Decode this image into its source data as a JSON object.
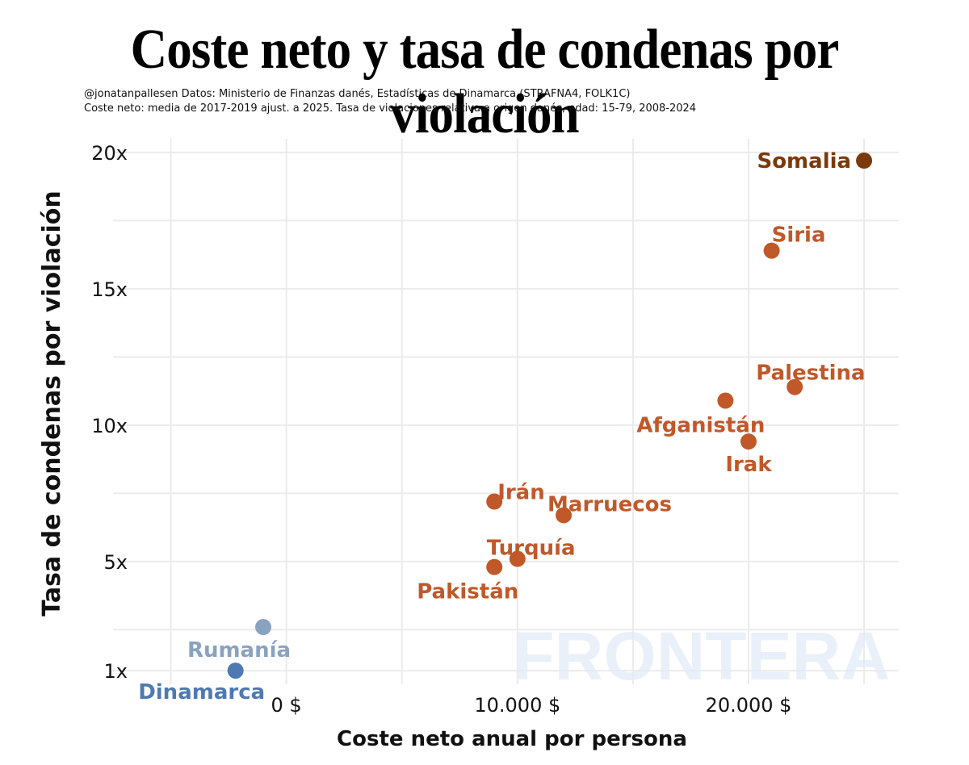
{
  "header": {
    "title": "Coste neto y tasa de condenas por violación",
    "subtitle_line1": "@jonatanpallesen  Datos: Ministerio de Finanzas danés, Estadísticas de Dinamarca (STRAFNA4, FOLK1C)",
    "subtitle_line2": "Coste neto: media de 2017-2019 ajust. a 2025. Tasa de violaciones relativa a origen danés, edad: 15-79, 2008-2024"
  },
  "watermark": "FRONTERA",
  "chart_data": {
    "type": "scatter",
    "title": "Coste neto y tasa de condenas por violación",
    "xlabel": "Coste neto anual por persona",
    "ylabel": "Tasa de condenas por violación",
    "xlim": [
      -7500,
      26500
    ],
    "ylim": [
      0.5,
      20.5
    ],
    "x_ticks": [
      0,
      10000,
      20000
    ],
    "x_tick_labels": [
      "0 $",
      "10.000 $",
      "20.000 $"
    ],
    "y_ticks": [
      1,
      5,
      10,
      15,
      20
    ],
    "y_tick_labels": [
      "1x",
      "5x",
      "10x",
      "15x",
      "20x"
    ],
    "grid": true,
    "points": [
      {
        "label": "Somalia",
        "x": 25000,
        "y": 19.7,
        "color": "#7a3a0c"
      },
      {
        "label": "Siria",
        "x": 21000,
        "y": 16.4,
        "color": "#c0582a"
      },
      {
        "label": "Palestina",
        "x": 22000,
        "y": 11.4,
        "color": "#c0582a"
      },
      {
        "label": "Afganistán",
        "x": 19000,
        "y": 10.9,
        "color": "#c0582a"
      },
      {
        "label": "Irak",
        "x": 20000,
        "y": 9.4,
        "color": "#c0582a"
      },
      {
        "label": "Irán",
        "x": 9000,
        "y": 7.2,
        "color": "#c0582a"
      },
      {
        "label": "Marruecos",
        "x": 12000,
        "y": 6.7,
        "color": "#c0582a"
      },
      {
        "label": "Turquía",
        "x": 10000,
        "y": 5.1,
        "color": "#c0582a"
      },
      {
        "label": "Pakistán",
        "x": 9000,
        "y": 4.8,
        "color": "#c0582a"
      },
      {
        "label": "Rumanía",
        "x": -1000,
        "y": 2.6,
        "color": "#8aa2bf"
      },
      {
        "label": "Dinamarca",
        "x": -2200,
        "y": 1.0,
        "color": "#4f79b1"
      }
    ]
  }
}
